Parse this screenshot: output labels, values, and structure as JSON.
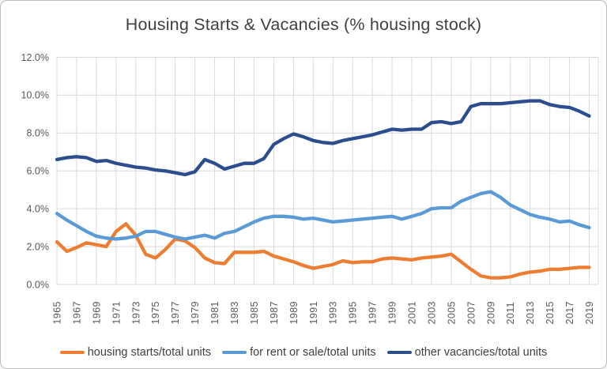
{
  "chart_data": {
    "type": "line",
    "title": "Housing Starts & Vacancies (% housing stock)",
    "x": [
      1965,
      1966,
      1967,
      1968,
      1969,
      1970,
      1971,
      1972,
      1973,
      1974,
      1975,
      1976,
      1977,
      1978,
      1979,
      1980,
      1981,
      1982,
      1983,
      1984,
      1985,
      1986,
      1987,
      1988,
      1989,
      1990,
      1991,
      1992,
      1993,
      1994,
      1995,
      1996,
      1997,
      1998,
      1999,
      2000,
      2001,
      2002,
      2003,
      2004,
      2005,
      2006,
      2007,
      2008,
      2009,
      2010,
      2011,
      2012,
      2013,
      2014,
      2015,
      2016,
      2017,
      2018,
      2019
    ],
    "x_tick_labels": [
      "1965",
      "1967",
      "1969",
      "1971",
      "1973",
      "1975",
      "1977",
      "1979",
      "1981",
      "1983",
      "1985",
      "1987",
      "1989",
      "1991",
      "1993",
      "1995",
      "1997",
      "1999",
      "2001",
      "2003",
      "2005",
      "2007",
      "2009",
      "2011",
      "2013",
      "2015",
      "2017",
      "2019"
    ],
    "y_tick_labels": [
      "12.0%",
      "10.0%",
      "8.0%",
      "6.0%",
      "4.0%",
      "2.0%",
      "0.0%"
    ],
    "ylim": [
      0,
      12
    ],
    "grid": "both",
    "legend_position": "bottom",
    "series": [
      {
        "name": "housing starts/total units",
        "color": "#ED7D31",
        "values": [
          2.25,
          1.75,
          1.95,
          2.2,
          2.1,
          2.0,
          2.8,
          3.2,
          2.6,
          1.6,
          1.4,
          1.85,
          2.4,
          2.3,
          1.95,
          1.4,
          1.15,
          1.1,
          1.7,
          1.7,
          1.7,
          1.75,
          1.5,
          1.35,
          1.2,
          1.0,
          0.85,
          0.95,
          1.05,
          1.25,
          1.15,
          1.2,
          1.2,
          1.35,
          1.4,
          1.35,
          1.3,
          1.4,
          1.45,
          1.5,
          1.6,
          1.2,
          0.8,
          0.45,
          0.35,
          0.35,
          0.4,
          0.55,
          0.65,
          0.7,
          0.8,
          0.8,
          0.85,
          0.9,
          0.9
        ]
      },
      {
        "name": "for rent or sale/total units",
        "color": "#5B9BD5",
        "values": [
          3.75,
          3.4,
          3.1,
          2.8,
          2.55,
          2.45,
          2.4,
          2.45,
          2.55,
          2.8,
          2.8,
          2.65,
          2.5,
          2.4,
          2.5,
          2.6,
          2.45,
          2.7,
          2.8,
          3.05,
          3.3,
          3.5,
          3.6,
          3.6,
          3.55,
          3.45,
          3.5,
          3.4,
          3.3,
          3.35,
          3.4,
          3.45,
          3.5,
          3.55,
          3.6,
          3.45,
          3.6,
          3.75,
          4.0,
          4.05,
          4.05,
          4.4,
          4.6,
          4.8,
          4.9,
          4.6,
          4.2,
          3.95,
          3.7,
          3.55,
          3.45,
          3.3,
          3.35,
          3.15,
          3.0
        ]
      },
      {
        "name": "other vacancies/total units",
        "color": "#2C4D8E",
        "values": [
          6.6,
          6.7,
          6.75,
          6.7,
          6.5,
          6.55,
          6.4,
          6.3,
          6.2,
          6.15,
          6.05,
          6.0,
          5.9,
          5.8,
          5.95,
          6.6,
          6.4,
          6.1,
          6.25,
          6.4,
          6.4,
          6.65,
          7.4,
          7.7,
          7.95,
          7.8,
          7.6,
          7.5,
          7.45,
          7.6,
          7.7,
          7.8,
          7.9,
          8.05,
          8.2,
          8.15,
          8.2,
          8.2,
          8.55,
          8.6,
          8.5,
          8.6,
          9.4,
          9.55,
          9.55,
          9.55,
          9.6,
          9.65,
          9.7,
          9.7,
          9.5,
          9.4,
          9.35,
          9.15,
          8.9
        ]
      }
    ],
    "colors": {
      "gridline": "#D9D9D9",
      "axis_text": "#595959",
      "title_text": "#404040",
      "card_border": "#BFBFBF"
    }
  }
}
